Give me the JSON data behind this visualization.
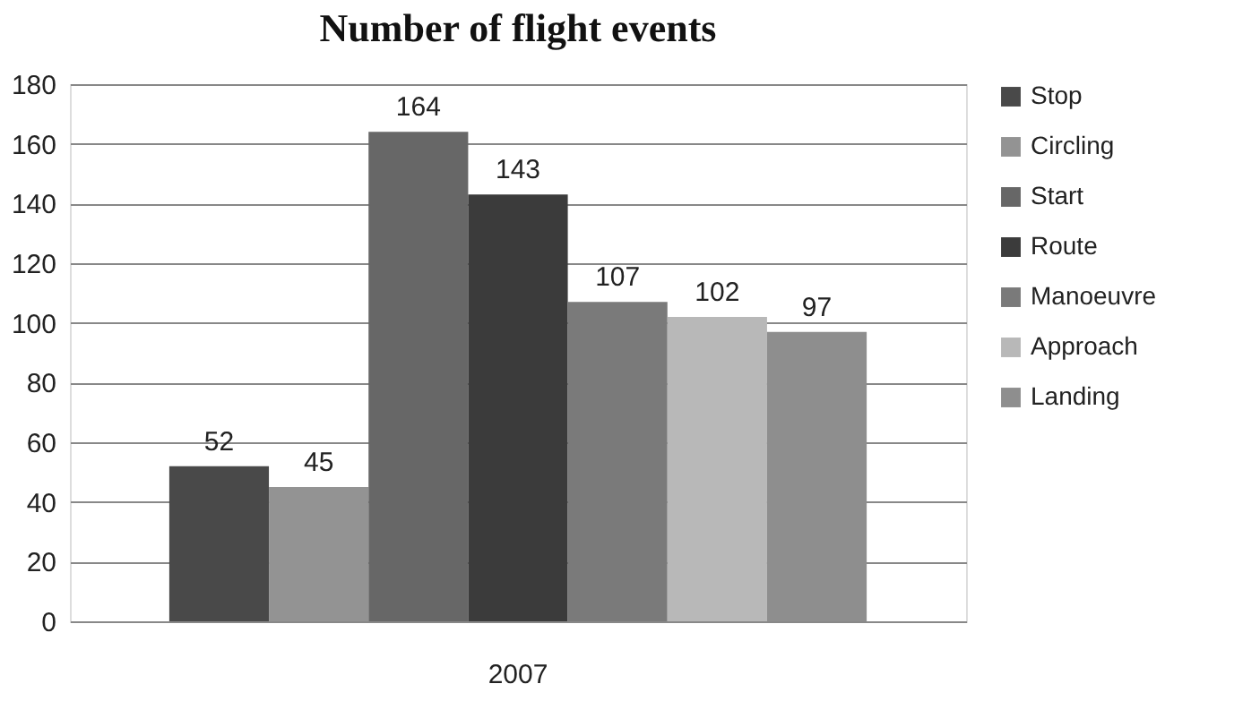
{
  "chart_data": {
    "type": "bar",
    "title": "Number of flight events",
    "categories": [
      "2007"
    ],
    "series": [
      {
        "name": "Stop",
        "color": "#494949",
        "values": [
          52
        ]
      },
      {
        "name": "Circling",
        "color": "#939393",
        "values": [
          45
        ]
      },
      {
        "name": "Start",
        "color": "#676767",
        "values": [
          164
        ]
      },
      {
        "name": "Route",
        "color": "#3b3b3b",
        "values": [
          143
        ]
      },
      {
        "name": "Manoeuvre",
        "color": "#7a7a7a",
        "values": [
          107
        ]
      },
      {
        "name": "Approach",
        "color": "#b8b8b8",
        "values": [
          102
        ]
      },
      {
        "name": "Landing",
        "color": "#8e8e8e",
        "values": [
          97
        ]
      }
    ],
    "ylim": [
      0,
      180
    ],
    "yticks": [
      0,
      20,
      40,
      60,
      80,
      100,
      120,
      140,
      160,
      180
    ],
    "grid": "y",
    "legend": "right",
    "data_labels": true
  }
}
